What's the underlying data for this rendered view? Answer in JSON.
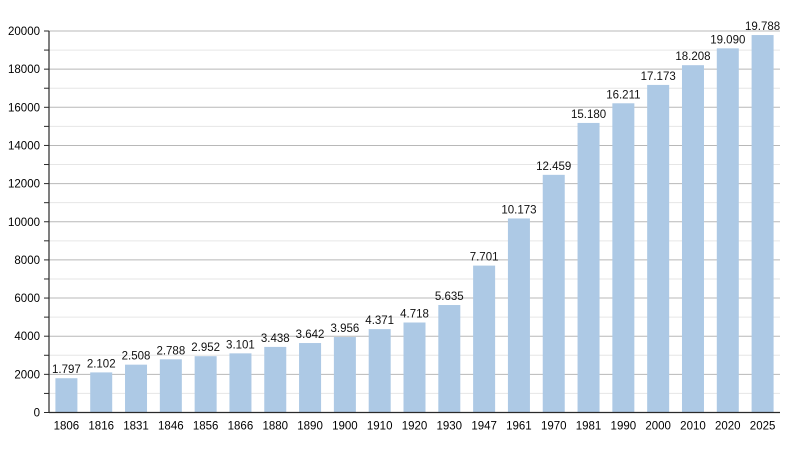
{
  "chart_data": {
    "type": "bar",
    "title": "",
    "xlabel": "",
    "ylabel": "",
    "categories": [
      "1806",
      "1816",
      "1831",
      "1846",
      "1856",
      "1866",
      "1880",
      "1890",
      "1900",
      "1910",
      "1920",
      "1930",
      "1947",
      "1961",
      "1970",
      "1981",
      "1990",
      "2000",
      "2010",
      "2020",
      "2025"
    ],
    "values": [
      1797,
      2102,
      2508,
      2788,
      2952,
      3101,
      3438,
      3642,
      3956,
      4371,
      4718,
      5635,
      7701,
      10173,
      12459,
      15180,
      16211,
      17173,
      18208,
      19090,
      19788
    ],
    "value_labels": [
      "1.797",
      "2.102",
      "2.508",
      "2.788",
      "2.952",
      "3.101",
      "3.438",
      "3.642",
      "3.956",
      "4.371",
      "4.718",
      "5.635",
      "7.701",
      "10.173",
      "12.459",
      "15.180",
      "16.211",
      "17.173",
      "18.208",
      "19.090",
      "19.788"
    ],
    "ylim": [
      0,
      20000
    ],
    "y_major_tick_step": 2000,
    "y_minor_tick_step": 1000,
    "y_major_tick_labels": [
      "0",
      "2000",
      "4000",
      "6000",
      "8000",
      "10000",
      "12000",
      "14000",
      "16000",
      "18000",
      "20000"
    ],
    "grid": "on",
    "legend": "none",
    "colors": {
      "bar_fill": "#adc9e5",
      "major_grid": "#b8b8b8",
      "minor_grid": "#e6e6e6",
      "axis": "#2a2a2a",
      "tick_text": "#000000",
      "value_label_text": "#111111",
      "background": "#ffffff"
    }
  }
}
